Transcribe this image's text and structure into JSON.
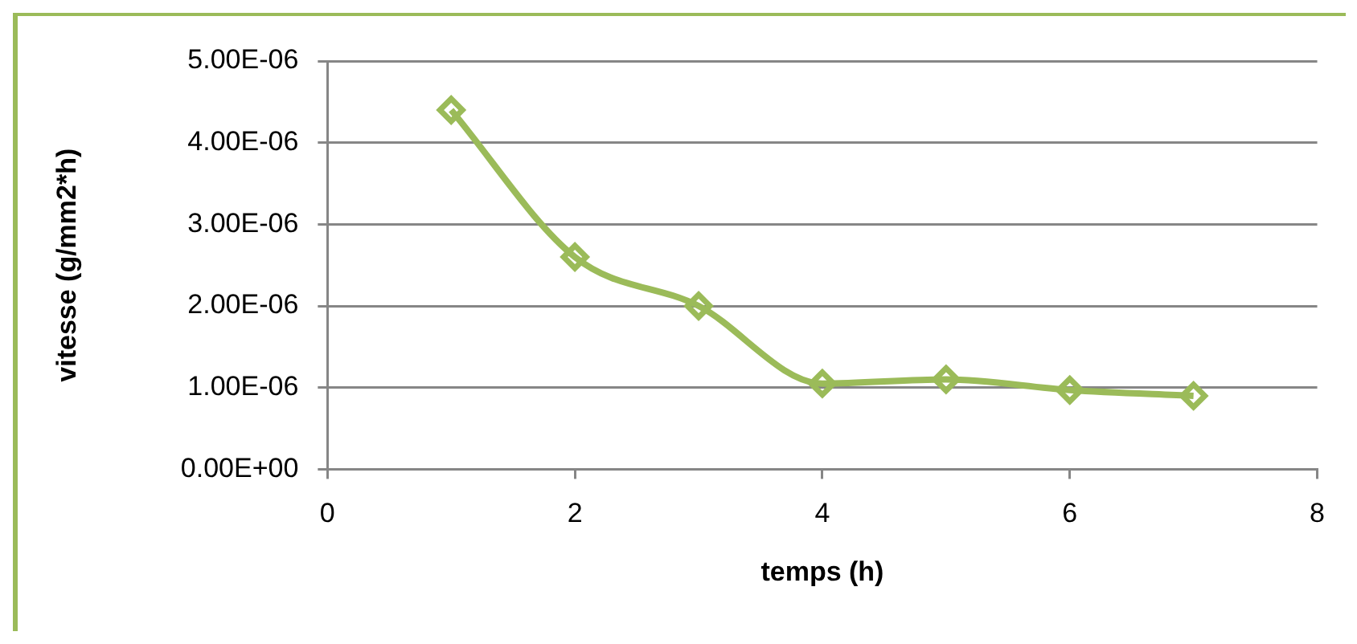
{
  "chart_data": {
    "type": "line",
    "xlabel": "temps (h)",
    "ylabel": "vitesse (g/mm2*h)",
    "x": [
      1,
      2,
      3,
      4,
      5,
      6,
      7
    ],
    "series": [
      {
        "color": "#9bbb59",
        "values": [
          4.4e-06,
          2.6e-06,
          2e-06,
          1.05e-06,
          1.1e-06,
          9.7e-07,
          9e-07
        ]
      }
    ],
    "xlim": [
      0,
      8
    ],
    "xticks": [
      0,
      2,
      4,
      6,
      8
    ],
    "ylim": [
      0,
      5e-06
    ],
    "yticks": [
      {
        "value": 0,
        "label": "0.00E+00"
      },
      {
        "value": 1e-06,
        "label": "1.00E-06"
      },
      {
        "value": 2e-06,
        "label": "2.00E-06"
      },
      {
        "value": 3e-06,
        "label": "3.00E-06"
      },
      {
        "value": 4e-06,
        "label": "4.00E-06"
      },
      {
        "value": 5e-06,
        "label": "5.00E-06"
      }
    ],
    "grid": "y",
    "legend": false,
    "marker": "diamond",
    "line_style": "solid"
  }
}
